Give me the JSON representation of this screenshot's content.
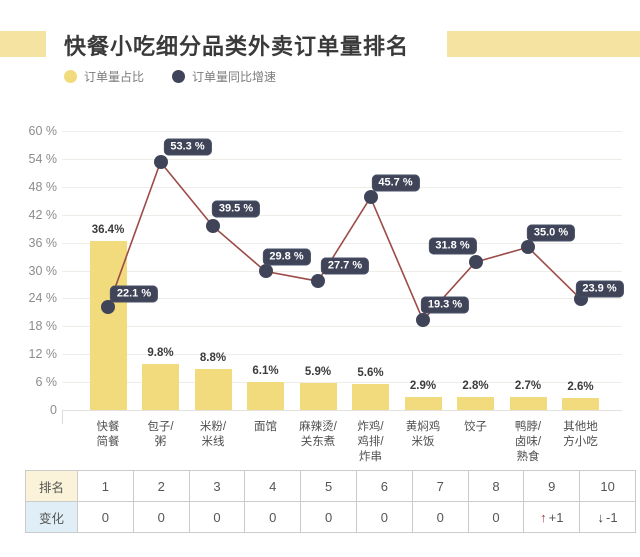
{
  "title": "快餐小吃细分品类外卖订单量排名",
  "legend": {
    "items": [
      {
        "name": "order-share",
        "label": "订单量占比",
        "color": "#F2DB7D"
      },
      {
        "name": "yoy-growth",
        "label": "订单量同比增速",
        "color": "#3F4458"
      }
    ]
  },
  "chart_data": {
    "type": "bar",
    "title": "快餐小吃细分品类外卖订单量排名",
    "categories": [
      "快餐\n简餐",
      "包子/\n粥",
      "米粉/\n米线",
      "面馆",
      "麻辣烫/\n关东煮",
      "炸鸡/\n鸡排/\n炸串",
      "黄焖鸡\n米饭",
      "饺子",
      "鸭脖/\n卤味/\n熟食",
      "其他地\n方小吃"
    ],
    "series": [
      {
        "name": "订单量占比",
        "type": "bar",
        "values": [
          36.4,
          9.8,
          8.8,
          6.1,
          5.9,
          5.6,
          2.9,
          2.8,
          2.7,
          2.6
        ],
        "labels": [
          "36.4%",
          "9.8%",
          "8.8%",
          "6.1%",
          "5.9%",
          "5.6%",
          "2.9%",
          "2.8%",
          "2.7%",
          "2.6%"
        ],
        "color": "#F2DB7D"
      },
      {
        "name": "订单量同比增速",
        "type": "line",
        "values": [
          22.1,
          53.3,
          39.5,
          29.8,
          27.7,
          45.7,
          19.3,
          31.8,
          35.0,
          23.9
        ],
        "labels": [
          "22.1 %",
          "53.3 %",
          "39.5 %",
          "29.8 %",
          "27.7 %",
          "45.7 %",
          "19.3 %",
          "31.8 %",
          "35.0 %",
          "23.9 %"
        ],
        "line_color": "#9C4B47",
        "dot_color": "#3F4458",
        "label_bg": "#3F4458"
      }
    ],
    "ylim": [
      0,
      60
    ],
    "ytick_step": 6,
    "ytick_labels": [
      "0",
      "6 %",
      "12 %",
      "18 %",
      "24 %",
      "30 %",
      "36 %",
      "42 %",
      "48 %",
      "54 %",
      "60 %"
    ],
    "grid": true,
    "legend_position": "top-left"
  },
  "table": {
    "rows": [
      {
        "header": "排名",
        "header_bg": "#FAF3D9",
        "cells": [
          {
            "text": "1"
          },
          {
            "text": "2"
          },
          {
            "text": "3"
          },
          {
            "text": "4"
          },
          {
            "text": "5"
          },
          {
            "text": "6"
          },
          {
            "text": "7"
          },
          {
            "text": "8"
          },
          {
            "text": "9"
          },
          {
            "text": "10"
          }
        ]
      },
      {
        "header": "变化",
        "header_bg": "#E0EFF7",
        "cells": [
          {
            "text": "0"
          },
          {
            "text": "0"
          },
          {
            "text": "0"
          },
          {
            "text": "0"
          },
          {
            "text": "0"
          },
          {
            "text": "0"
          },
          {
            "text": "0"
          },
          {
            "text": "0"
          },
          {
            "text": "+1",
            "arrow": "up",
            "arrow_glyph": "↑",
            "arrow_color": "#9E3F43"
          },
          {
            "text": "-1",
            "arrow": "down",
            "arrow_glyph": "↓",
            "arrow_color": "#3a3a3a"
          }
        ]
      }
    ]
  },
  "colors": {
    "header_bar": "#F5E4A1",
    "bar_fill": "#F2DB7D",
    "line": "#9C4B47",
    "dot": "#3F4458",
    "rank_header_bg": "#FAF3D9",
    "change_header_bg": "#E0EFF7"
  }
}
